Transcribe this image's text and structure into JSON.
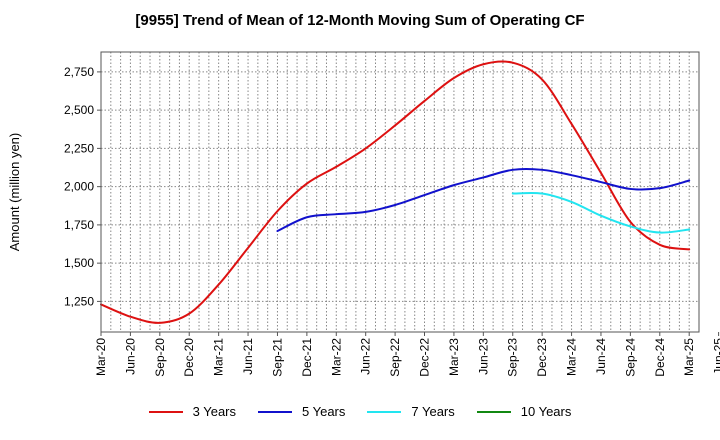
{
  "chart_data": {
    "type": "line",
    "title": "[9955]  Trend of Mean of 12-Month Moving Sum of Operating CF",
    "xlabel": "",
    "ylabel": "Amount (million yen)",
    "ylim": [
      1050,
      2880
    ],
    "yticks": [
      1250,
      1500,
      1750,
      2000,
      2250,
      2500,
      2750
    ],
    "ytick_labels": [
      "1,250",
      "1,500",
      "1,750",
      "2,000",
      "2,250",
      "2,500",
      "2,750"
    ],
    "xlim": [
      0,
      61
    ],
    "xtick_labels": [
      "Mar-20",
      "Jun-20",
      "Sep-20",
      "Dec-20",
      "Mar-21",
      "Jun-21",
      "Sep-21",
      "Dec-21",
      "Mar-22",
      "Jun-22",
      "Sep-22",
      "Dec-22",
      "Mar-23",
      "Jun-23",
      "Sep-23",
      "Dec-23",
      "Mar-24",
      "Jun-24",
      "Sep-24",
      "Dec-24",
      "Mar-25",
      "Jun-25"
    ],
    "x_note": "x values are months since Mar-20",
    "grid": true,
    "legend_position": "bottom",
    "series": [
      {
        "name": "3 Years",
        "color": "#dd1111",
        "x": [
          0,
          3,
          6,
          9,
          12,
          15,
          18,
          21,
          24,
          27,
          30,
          33,
          36,
          39,
          42,
          45,
          48,
          51,
          54,
          57,
          60
        ],
        "y": [
          1230,
          1150,
          1110,
          1170,
          1360,
          1600,
          1840,
          2020,
          2130,
          2250,
          2400,
          2560,
          2710,
          2800,
          2810,
          2700,
          2410,
          2090,
          1770,
          1620,
          1590
        ]
      },
      {
        "name": "5 Years",
        "color": "#1111cc",
        "x": [
          18,
          21,
          24,
          27,
          30,
          33,
          36,
          39,
          42,
          45,
          48,
          51,
          54,
          57,
          60
        ],
        "y": [
          1710,
          1800,
          1820,
          1835,
          1880,
          1945,
          2010,
          2060,
          2110,
          2110,
          2075,
          2030,
          1985,
          1990,
          2040
        ]
      },
      {
        "name": "7 Years",
        "color": "#22e5f0",
        "x": [
          42,
          45,
          48,
          51,
          54,
          57,
          60
        ],
        "y": [
          1955,
          1955,
          1900,
          1810,
          1740,
          1700,
          1720
        ]
      },
      {
        "name": "10 Years",
        "color": "#118811",
        "x": [],
        "y": []
      }
    ]
  }
}
